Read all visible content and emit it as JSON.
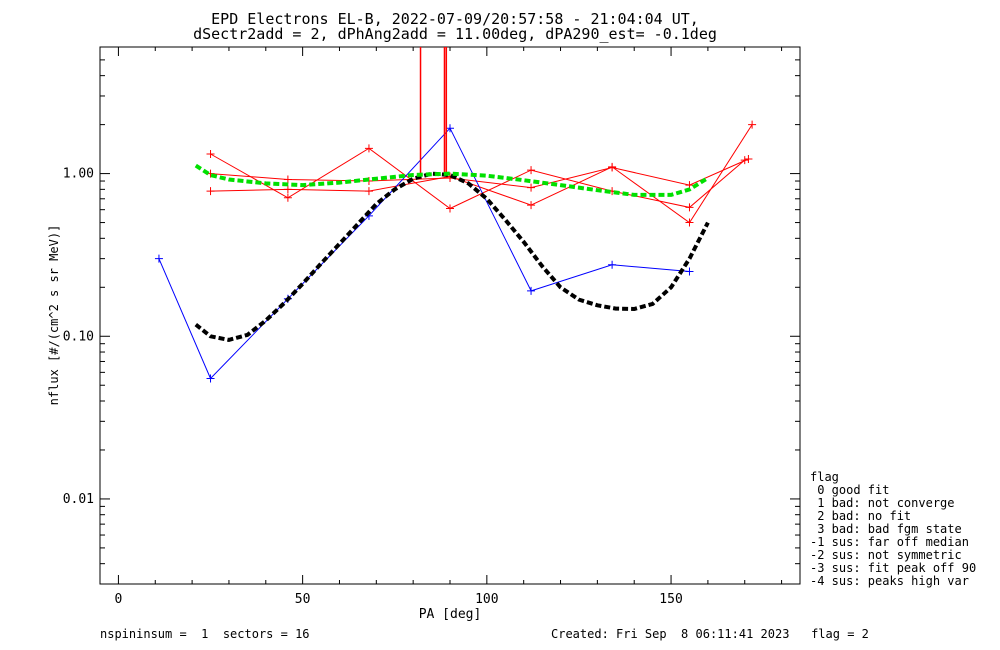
{
  "chart_data": {
    "type": "line",
    "title": "EPD Electrons EL-B, 2022-07-09/20:57:58 - 21:04:04 UT,",
    "subtitle": "dSectr2add = 2, dPhAng2add = 11.00deg, dPA290_est=  -0.1deg",
    "xlabel": "PA [deg]",
    "ylabel": "nflux [#/(cm^2 s sr MeV)]",
    "xlim": [
      -5,
      185
    ],
    "ylim": [
      0.003,
      6
    ],
    "yscale": "log",
    "x_ticks": [
      0,
      50,
      100,
      150
    ],
    "y_ticks": [
      0.01,
      0.1,
      1.0
    ],
    "y_tick_labels": [
      "0.01",
      "0.10",
      "1.00"
    ],
    "grid": false,
    "series": [
      {
        "color": "#ff0000",
        "style": "line+plus",
        "x": [
          25,
          46,
          68,
          90,
          112,
          134,
          155,
          170
        ],
        "y": [
          1.32,
          0.71,
          1.43,
          0.61,
          1.05,
          0.78,
          0.62,
          1.21
        ]
      },
      {
        "color": "#ff0000",
        "style": "line+plus",
        "x": [
          25,
          46,
          68,
          90,
          112,
          134,
          155,
          171
        ],
        "y": [
          1.0,
          0.92,
          0.9,
          0.94,
          0.82,
          1.09,
          0.85,
          1.23
        ]
      },
      {
        "color": "#ff0000",
        "style": "line+plus",
        "x": [
          25,
          46,
          68,
          90,
          112,
          134,
          155,
          172
        ],
        "y": [
          0.78,
          0.8,
          0.78,
          0.96,
          0.64,
          1.1,
          0.5,
          2.0
        ]
      },
      {
        "color": "#0000ff",
        "style": "line+plus",
        "x": [
          11,
          25,
          46,
          68,
          90,
          112,
          134,
          155
        ],
        "y": [
          0.3,
          0.055,
          0.17,
          0.55,
          1.9,
          0.19,
          0.275,
          0.25
        ]
      },
      {
        "color": "#ff0000",
        "style": "vertical-lines",
        "x": [
          82,
          88.5,
          89
        ],
        "y_from": [
          1.0,
          1.0,
          1.0
        ]
      },
      {
        "color": "#000000",
        "style": "dashed-fit",
        "x": [
          21,
          25,
          30,
          35,
          40,
          45,
          50,
          55,
          60,
          65,
          70,
          75,
          80,
          85,
          90,
          95,
          100,
          105,
          110,
          115,
          120,
          125,
          130,
          135,
          140,
          145,
          150,
          155,
          160
        ],
        "y": [
          0.118,
          0.1,
          0.095,
          0.102,
          0.125,
          0.16,
          0.21,
          0.28,
          0.37,
          0.49,
          0.65,
          0.8,
          0.93,
          1.0,
          0.98,
          0.87,
          0.7,
          0.52,
          0.38,
          0.27,
          0.2,
          0.168,
          0.155,
          0.148,
          0.147,
          0.158,
          0.2,
          0.3,
          0.5
        ]
      },
      {
        "color": "#00e000",
        "style": "dashed-fit",
        "x": [
          21,
          25,
          30,
          40,
          50,
          60,
          70,
          80,
          90,
          100,
          110,
          120,
          130,
          140,
          150,
          155,
          160
        ],
        "y": [
          1.12,
          0.98,
          0.92,
          0.87,
          0.85,
          0.88,
          0.93,
          0.98,
          1.0,
          0.97,
          0.91,
          0.85,
          0.79,
          0.74,
          0.74,
          0.8,
          0.94
        ]
      }
    ]
  },
  "legend": {
    "title": "flag",
    "items": [
      " 0 good fit",
      " 1 bad: not converge",
      " 2 bad: no fit",
      " 3 bad: bad fgm state",
      "-1 sus: far off median",
      "-2 sus: not symmetric",
      "-3 sus: fit peak off 90",
      "-4 sus: peaks high var"
    ]
  },
  "footer": {
    "left": "nspininsum =  1  sectors = 16",
    "right": "Created: Fri Sep  8 06:11:41 2023   flag = 2"
  }
}
